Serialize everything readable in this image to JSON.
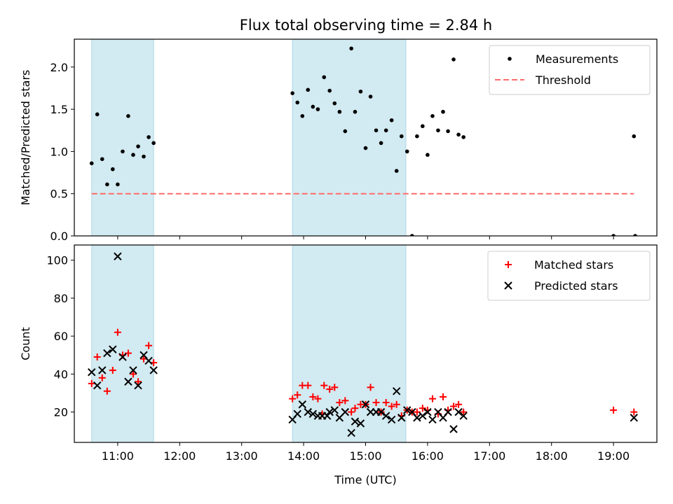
{
  "title": "Flux total observing time = 2.84 h",
  "colors": {
    "span": "#add8e6",
    "threshold": "#ff6b6b",
    "matched": "#ff0000",
    "predicted": "#000000",
    "measure": "#000000"
  },
  "chart_data": [
    {
      "type": "scatter",
      "ylabel": "Matched/Predicted stars",
      "xlim": [
        10.3,
        19.7
      ],
      "ylim": [
        0,
        2.33
      ],
      "yticks": [
        "0.0",
        "0.5",
        "1.0",
        "1.5",
        "2.0"
      ],
      "ytick_values": [
        0,
        0.5,
        1.0,
        1.5,
        2.0
      ],
      "legend_position": "top-right",
      "shaded_spans": [
        [
          10.58,
          11.58
        ],
        [
          13.82,
          15.65
        ]
      ],
      "threshold": {
        "name": "Threshold",
        "value": 0.5,
        "x_range": [
          10.58,
          19.33
        ]
      },
      "series": [
        {
          "name": "Measurements",
          "x": [
            10.58,
            10.67,
            10.75,
            10.83,
            10.92,
            11.0,
            11.08,
            11.17,
            11.25,
            11.33,
            11.42,
            11.5,
            11.58,
            13.82,
            13.9,
            13.98,
            14.07,
            14.15,
            14.23,
            14.33,
            14.42,
            14.5,
            14.58,
            14.67,
            14.77,
            14.83,
            14.92,
            15.0,
            15.08,
            15.17,
            15.25,
            15.33,
            15.42,
            15.5,
            15.58,
            15.67,
            15.75,
            15.83,
            15.92,
            16.0,
            16.08,
            16.17,
            16.25,
            16.33,
            16.42,
            16.5,
            16.58,
            19.0,
            19.33,
            19.35
          ],
          "y": [
            0.86,
            1.44,
            0.91,
            0.61,
            0.79,
            0.61,
            1.0,
            1.42,
            0.96,
            1.06,
            0.94,
            1.17,
            1.1,
            1.69,
            1.58,
            1.42,
            1.73,
            1.53,
            1.5,
            1.88,
            1.72,
            1.57,
            1.47,
            1.24,
            2.22,
            1.47,
            1.71,
            1.04,
            1.65,
            1.25,
            1.1,
            1.25,
            1.37,
            0.77,
            1.18,
            1.0,
            0.0,
            1.18,
            1.3,
            0.96,
            1.42,
            1.25,
            1.47,
            1.24,
            2.09,
            1.2,
            1.17,
            0.0,
            1.18,
            0.0
          ]
        }
      ]
    },
    {
      "type": "scatter",
      "xlabel": "Time (UTC)",
      "ylabel": "Count",
      "xlim": [
        10.3,
        19.7
      ],
      "ylim": [
        4,
        108
      ],
      "yticks": [
        "20",
        "40",
        "60",
        "80",
        "100"
      ],
      "ytick_values": [
        20,
        40,
        60,
        80,
        100
      ],
      "xticks": [
        "11:00",
        "12:00",
        "13:00",
        "14:00",
        "15:00",
        "16:00",
        "17:00",
        "18:00",
        "19:00"
      ],
      "xtick_values": [
        11,
        12,
        13,
        14,
        15,
        16,
        17,
        18,
        19
      ],
      "legend_position": "top-right",
      "shaded_spans": [
        [
          10.58,
          11.58
        ],
        [
          13.82,
          15.65
        ]
      ],
      "series": [
        {
          "name": "Matched stars",
          "x": [
            10.58,
            10.67,
            10.75,
            10.83,
            10.92,
            11.0,
            11.08,
            11.17,
            11.25,
            11.33,
            11.42,
            11.5,
            11.58,
            13.82,
            13.9,
            13.98,
            14.07,
            14.15,
            14.23,
            14.3,
            14.33,
            14.42,
            14.5,
            14.58,
            14.67,
            14.77,
            14.83,
            14.92,
            15.0,
            15.08,
            15.17,
            15.25,
            15.33,
            15.42,
            15.5,
            15.58,
            15.67,
            15.75,
            15.83,
            15.92,
            16.0,
            16.08,
            16.17,
            16.25,
            16.33,
            16.42,
            16.5,
            16.58,
            19.0,
            19.33
          ],
          "y": [
            35,
            49,
            38,
            31,
            42,
            62,
            50,
            51,
            40,
            36,
            48,
            55,
            46,
            27,
            29,
            34,
            34,
            28,
            27,
            19,
            34,
            32,
            33,
            25,
            26,
            20,
            22,
            24,
            24,
            33,
            25,
            20,
            25,
            23,
            24,
            18,
            21,
            20,
            20,
            22,
            21,
            27,
            19,
            28,
            21,
            23,
            24,
            20,
            21,
            20
          ]
        },
        {
          "name": "Predicted stars",
          "x": [
            10.58,
            10.67,
            10.75,
            10.83,
            10.92,
            11.0,
            11.08,
            11.17,
            11.25,
            11.33,
            11.42,
            11.5,
            11.58,
            13.82,
            13.9,
            13.98,
            14.07,
            14.15,
            14.23,
            14.3,
            14.38,
            14.42,
            14.5,
            14.58,
            14.67,
            14.77,
            14.83,
            14.92,
            15.0,
            15.08,
            15.17,
            15.25,
            15.33,
            15.42,
            15.5,
            15.58,
            15.67,
            15.75,
            15.83,
            15.92,
            16.0,
            16.08,
            16.17,
            16.25,
            16.33,
            16.42,
            16.5,
            16.58,
            19.33
          ],
          "y": [
            41,
            34,
            42,
            51,
            53,
            102,
            49,
            36,
            42,
            34,
            50,
            47,
            42,
            16,
            19,
            24,
            20,
            19,
            18,
            18,
            18,
            20,
            21,
            17,
            20,
            9,
            15,
            14,
            24,
            20,
            20,
            20,
            18,
            16,
            31,
            17,
            21,
            20,
            17,
            18,
            20,
            16,
            20,
            17,
            20,
            11,
            20,
            18,
            17
          ]
        }
      ]
    }
  ]
}
